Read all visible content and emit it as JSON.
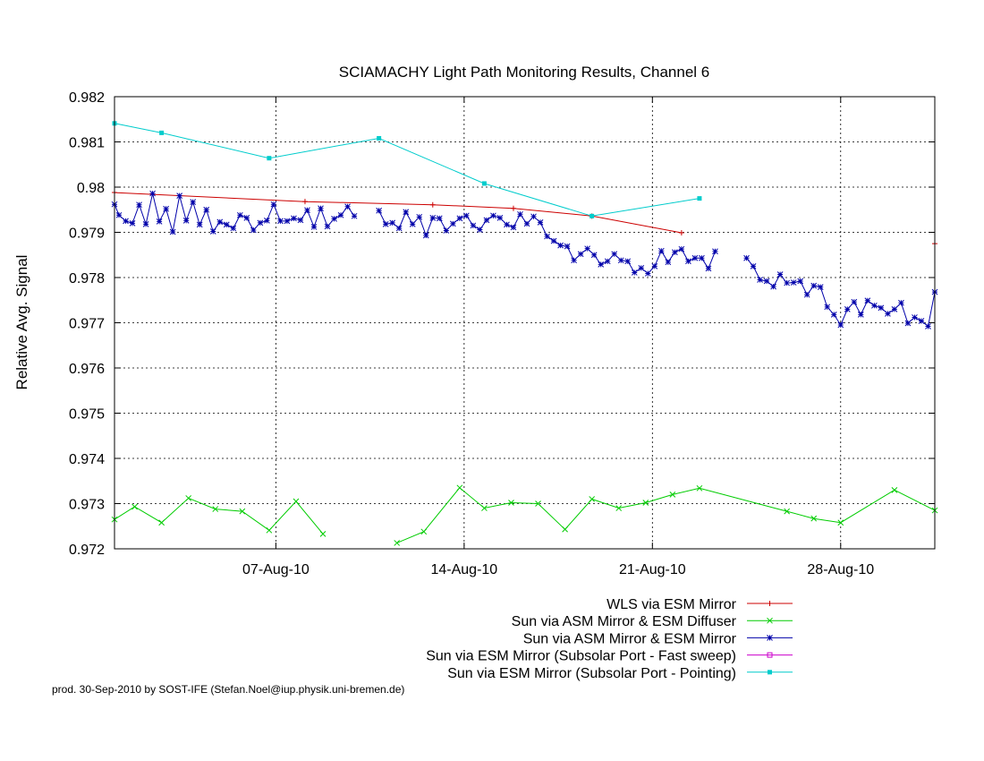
{
  "footer": "prod. 30-Sep-2010 by SOST-IFE (Stefan.Noel@iup.physik.uni-bremen.de)",
  "chart_data": {
    "type": "line",
    "title": "SCIAMACHY Light Path Monitoring Results, Channel 6",
    "xlabel": "",
    "ylabel": "Relative Avg. Signal",
    "xlim": [
      "2010-08-01T00:00",
      "2010-08-31T12:00"
    ],
    "ylim": [
      0.972,
      0.982
    ],
    "yticks": [
      0.972,
      0.973,
      0.974,
      0.975,
      0.976,
      0.977,
      0.978,
      0.979,
      0.98,
      0.981,
      0.982
    ],
    "ytick_labels": [
      "0.972",
      "0.973",
      "0.974",
      "0.975",
      "0.976",
      "0.977",
      "0.978",
      "0.979",
      "0.98",
      "0.981",
      "0.982"
    ],
    "xticks": [
      "2010-08-07",
      "2010-08-14",
      "2010-08-21",
      "2010-08-28"
    ],
    "xtick_labels": [
      "07-Aug-10",
      "14-Aug-10",
      "21-Aug-10",
      "28-Aug-10"
    ],
    "grid": true,
    "legend_position": "bottom-right",
    "series": [
      {
        "name": "WLS via ESM Mirror",
        "color": "#cc0000",
        "marker": "plus",
        "segments": [
          [
            [
              "2010-08-01T00:00",
              0.97988
            ],
            [
              "2010-08-08T02:00",
              0.97968
            ],
            [
              "2010-08-12T20:00",
              0.97961
            ],
            [
              "2010-08-15T20:00",
              0.97953
            ],
            [
              "2010-08-18T18:00",
              0.97936
            ],
            [
              "2010-08-22T02:00",
              0.97899
            ]
          ],
          [
            [
              "2010-08-31T12:00",
              0.97875
            ]
          ]
        ]
      },
      {
        "name": "Sun via ASM Mirror & ESM Diffuser",
        "color": "#00cc00",
        "marker": "x",
        "segments": [
          [
            [
              "2010-08-01T00:00",
              0.97265
            ],
            [
              "2010-08-01T18:00",
              0.97293
            ],
            [
              "2010-08-02T18:00",
              0.97258
            ],
            [
              "2010-08-03T18:00",
              0.97312
            ],
            [
              "2010-08-04T18:00",
              0.97288
            ],
            [
              "2010-08-05T18:00",
              0.97283
            ],
            [
              "2010-08-06T18:00",
              0.97241
            ],
            [
              "2010-08-07T18:00",
              0.97305
            ],
            [
              "2010-08-08T18:00",
              0.97233
            ]
          ],
          [
            [
              "2010-08-11T12:00",
              0.97213
            ],
            [
              "2010-08-12T12:00",
              0.97238
            ],
            [
              "2010-08-13T20:00",
              0.97335
            ],
            [
              "2010-08-14T18:00",
              0.9729
            ],
            [
              "2010-08-15T18:00",
              0.97302
            ],
            [
              "2010-08-16T18:00",
              0.973
            ],
            [
              "2010-08-17T18:00",
              0.97243
            ],
            [
              "2010-08-18T18:00",
              0.9731
            ],
            [
              "2010-08-19T18:00",
              0.9729
            ],
            [
              "2010-08-20T18:00",
              0.97302
            ],
            [
              "2010-08-21T18:00",
              0.9732
            ],
            [
              "2010-08-22T18:00",
              0.97334
            ],
            [
              "2010-08-26T00:00",
              0.97283
            ],
            [
              "2010-08-27T00:00",
              0.97267
            ],
            [
              "2010-08-28T00:00",
              0.97258
            ],
            [
              "2010-08-30T00:00",
              0.9733
            ],
            [
              "2010-08-31T12:00",
              0.97285
            ]
          ]
        ]
      },
      {
        "name": "Sun via ASM Mirror & ESM Mirror",
        "color": "#0000aa",
        "marker": "star",
        "segments": [
          [
            [
              "2010-08-01T00:00",
              0.97962
            ],
            [
              "2010-08-01T04:00",
              0.97938
            ],
            [
              "2010-08-01T10:00",
              0.97925
            ],
            [
              "2010-08-01T16:00",
              0.9792
            ],
            [
              "2010-08-01T22:00",
              0.97961
            ],
            [
              "2010-08-02T04:00",
              0.97918
            ],
            [
              "2010-08-02T10:00",
              0.97986
            ],
            [
              "2010-08-02T16:00",
              0.97924
            ],
            [
              "2010-08-02T22:00",
              0.97952
            ],
            [
              "2010-08-03T04:00",
              0.97901
            ],
            [
              "2010-08-03T10:00",
              0.97981
            ],
            [
              "2010-08-03T16:00",
              0.97926
            ],
            [
              "2010-08-03T22:00",
              0.97967
            ],
            [
              "2010-08-04T04:00",
              0.97917
            ],
            [
              "2010-08-04T10:00",
              0.9795
            ],
            [
              "2010-08-04T16:00",
              0.97902
            ],
            [
              "2010-08-04T22:00",
              0.97923
            ],
            [
              "2010-08-05T04:00",
              0.97917
            ],
            [
              "2010-08-05T10:00",
              0.97909
            ],
            [
              "2010-08-05T16:00",
              0.97938
            ],
            [
              "2010-08-05T22:00",
              0.97932
            ],
            [
              "2010-08-06T04:00",
              0.97905
            ],
            [
              "2010-08-06T10:00",
              0.97921
            ],
            [
              "2010-08-06T16:00",
              0.97926
            ],
            [
              "2010-08-06T22:00",
              0.97962
            ],
            [
              "2010-08-07T04:00",
              0.97925
            ],
            [
              "2010-08-07T10:00",
              0.97925
            ],
            [
              "2010-08-07T16:00",
              0.97931
            ],
            [
              "2010-08-07T22:00",
              0.97927
            ],
            [
              "2010-08-08T04:00",
              0.97949
            ],
            [
              "2010-08-08T10:00",
              0.97912
            ],
            [
              "2010-08-08T16:00",
              0.97953
            ],
            [
              "2010-08-08T22:00",
              0.97913
            ],
            [
              "2010-08-09T04:00",
              0.9793
            ],
            [
              "2010-08-09T10:00",
              0.97938
            ],
            [
              "2010-08-09T16:00",
              0.97957
            ],
            [
              "2010-08-09T22:00",
              0.97936
            ]
          ],
          [
            [
              "2010-08-10T20:00",
              0.97948
            ],
            [
              "2010-08-11T02:00",
              0.97918
            ],
            [
              "2010-08-11T08:00",
              0.97921
            ],
            [
              "2010-08-11T14:00",
              0.97909
            ],
            [
              "2010-08-11T20:00",
              0.97945
            ],
            [
              "2010-08-12T02:00",
              0.97918
            ],
            [
              "2010-08-12T08:00",
              0.97934
            ],
            [
              "2010-08-12T14:00",
              0.97893
            ],
            [
              "2010-08-12T20:00",
              0.97932
            ],
            [
              "2010-08-13T02:00",
              0.97931
            ],
            [
              "2010-08-13T08:00",
              0.97904
            ],
            [
              "2010-08-13T14:00",
              0.97919
            ],
            [
              "2010-08-13T20:00",
              0.97931
            ],
            [
              "2010-08-14T02:00",
              0.97937
            ],
            [
              "2010-08-14T08:00",
              0.97915
            ],
            [
              "2010-08-14T14:00",
              0.97906
            ],
            [
              "2010-08-14T20:00",
              0.97927
            ],
            [
              "2010-08-15T02:00",
              0.97937
            ],
            [
              "2010-08-15T08:00",
              0.97932
            ],
            [
              "2010-08-15T14:00",
              0.97917
            ],
            [
              "2010-08-15T20:00",
              0.97911
            ],
            [
              "2010-08-16T02:00",
              0.9794
            ],
            [
              "2010-08-16T08:00",
              0.97919
            ],
            [
              "2010-08-16T14:00",
              0.97935
            ],
            [
              "2010-08-16T20:00",
              0.97922
            ],
            [
              "2010-08-17T02:00",
              0.97891
            ],
            [
              "2010-08-17T08:00",
              0.97881
            ],
            [
              "2010-08-17T14:00",
              0.97871
            ],
            [
              "2010-08-17T20:00",
              0.97869
            ],
            [
              "2010-08-18T02:00",
              0.97838
            ],
            [
              "2010-08-18T08:00",
              0.97852
            ],
            [
              "2010-08-18T14:00",
              0.97864
            ],
            [
              "2010-08-18T20:00",
              0.9785
            ],
            [
              "2010-08-19T02:00",
              0.97829
            ],
            [
              "2010-08-19T08:00",
              0.97836
            ],
            [
              "2010-08-19T14:00",
              0.97852
            ],
            [
              "2010-08-19T20:00",
              0.97838
            ],
            [
              "2010-08-20T02:00",
              0.97836
            ],
            [
              "2010-08-20T08:00",
              0.97811
            ],
            [
              "2010-08-20T14:00",
              0.97821
            ],
            [
              "2010-08-20T20:00",
              0.97809
            ],
            [
              "2010-08-21T02:00",
              0.97825
            ],
            [
              "2010-08-21T08:00",
              0.97859
            ],
            [
              "2010-08-21T14:00",
              0.97834
            ],
            [
              "2010-08-21T20:00",
              0.97856
            ],
            [
              "2010-08-22T02:00",
              0.97863
            ],
            [
              "2010-08-22T08:00",
              0.97836
            ],
            [
              "2010-08-22T14:00",
              0.97843
            ],
            [
              "2010-08-22T20:00",
              0.97843
            ],
            [
              "2010-08-23T02:00",
              0.9782
            ],
            [
              "2010-08-23T08:00",
              0.97858
            ]
          ],
          [
            [
              "2010-08-24T12:00",
              0.97843
            ],
            [
              "2010-08-24T18:00",
              0.97825
            ],
            [
              "2010-08-25T00:00",
              0.97795
            ],
            [
              "2010-08-25T06:00",
              0.97792
            ],
            [
              "2010-08-25T12:00",
              0.9778
            ],
            [
              "2010-08-25T18:00",
              0.97807
            ],
            [
              "2010-08-26T00:00",
              0.97788
            ],
            [
              "2010-08-26T06:00",
              0.97789
            ],
            [
              "2010-08-26T12:00",
              0.97792
            ],
            [
              "2010-08-26T18:00",
              0.97762
            ],
            [
              "2010-08-27T00:00",
              0.97782
            ],
            [
              "2010-08-27T06:00",
              0.97779
            ],
            [
              "2010-08-27T12:00",
              0.97735
            ],
            [
              "2010-08-27T18:00",
              0.97718
            ],
            [
              "2010-08-28T00:00",
              0.97695
            ],
            [
              "2010-08-28T06:00",
              0.9773
            ],
            [
              "2010-08-28T12:00",
              0.97746
            ],
            [
              "2010-08-28T18:00",
              0.97718
            ],
            [
              "2010-08-29T00:00",
              0.97749
            ],
            [
              "2010-08-29T06:00",
              0.97738
            ],
            [
              "2010-08-29T12:00",
              0.97733
            ],
            [
              "2010-08-29T18:00",
              0.9772
            ],
            [
              "2010-08-30T00:00",
              0.9773
            ],
            [
              "2010-08-30T06:00",
              0.97744
            ],
            [
              "2010-08-30T12:00",
              0.97699
            ],
            [
              "2010-08-30T18:00",
              0.97712
            ],
            [
              "2010-08-31T00:00",
              0.97704
            ],
            [
              "2010-08-31T06:00",
              0.97692
            ],
            [
              "2010-08-31T12:00",
              0.97768
            ]
          ]
        ]
      },
      {
        "name": "Sun via ESM Mirror (Subsolar Port - Fast sweep)",
        "color": "#cc00cc",
        "marker": "square-open",
        "segments": []
      },
      {
        "name": "Sun via ESM Mirror (Subsolar Port - Pointing)",
        "color": "#00cccc",
        "marker": "square",
        "segments": [
          [
            [
              "2010-08-01T00:00",
              0.98141
            ],
            [
              "2010-08-02T18:00",
              0.9812
            ],
            [
              "2010-08-06T18:00",
              0.98064
            ],
            [
              "2010-08-10T20:00",
              0.98108
            ],
            [
              "2010-08-14T18:00",
              0.98008
            ],
            [
              "2010-08-18T18:00",
              0.97936
            ],
            [
              "2010-08-22T18:00",
              0.97975
            ]
          ]
        ]
      }
    ]
  }
}
